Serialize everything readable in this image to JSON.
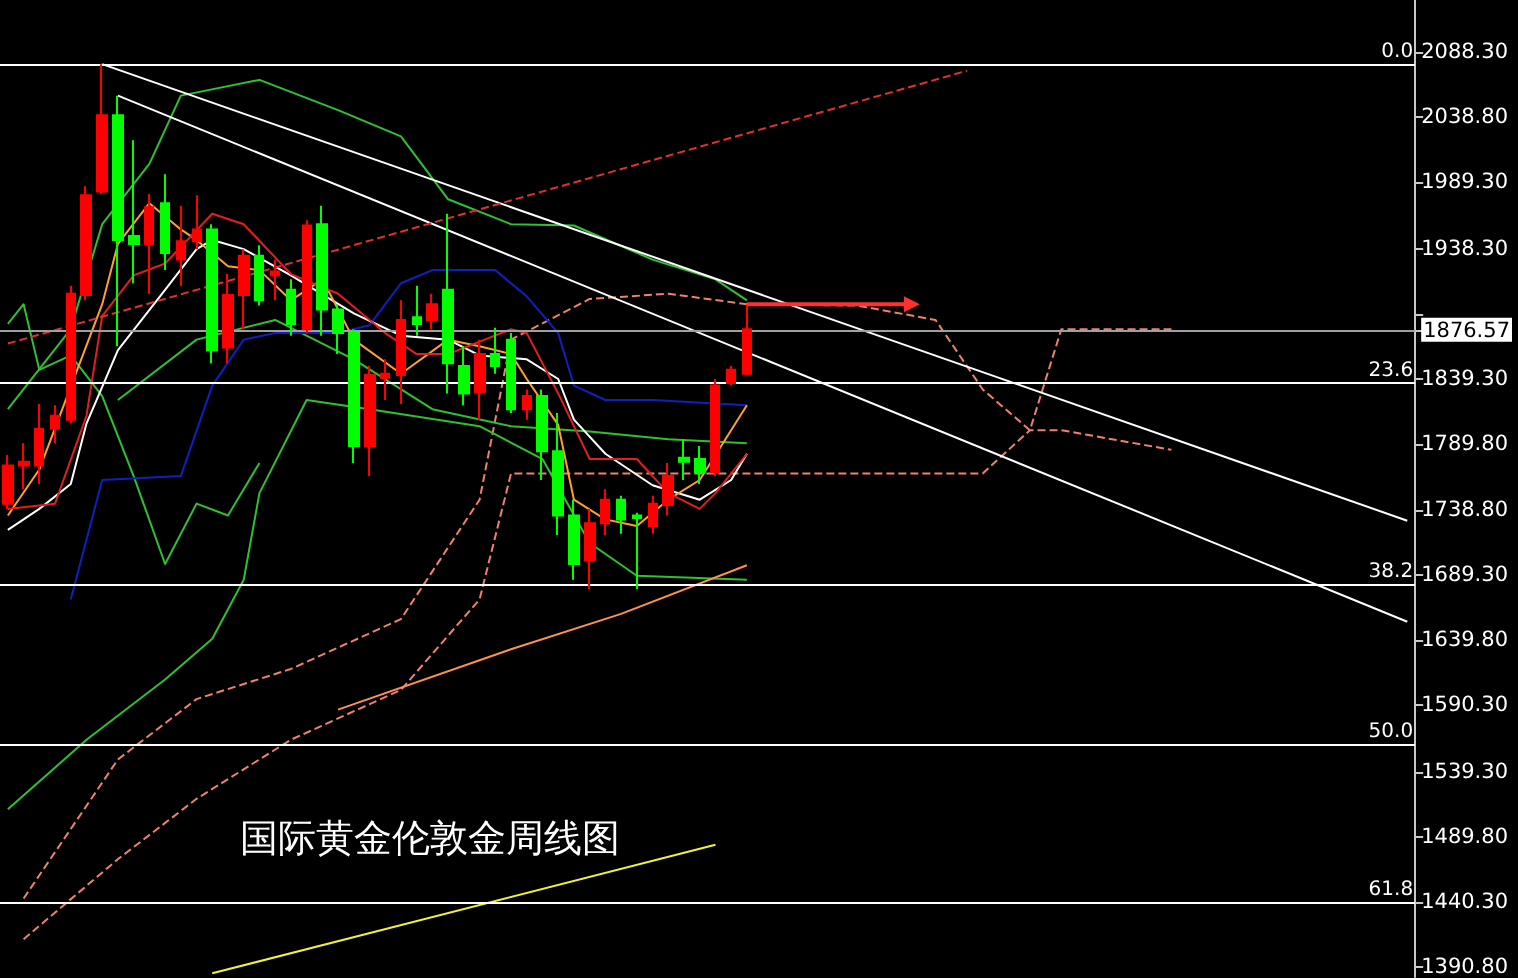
{
  "chart_data": {
    "type": "candlestick",
    "title": "国际黄金伦敦金周线图",
    "categories": [
      null,
      null,
      null,
      null,
      null,
      null,
      null,
      null,
      null,
      null,
      null,
      null,
      null,
      null,
      null,
      null,
      null,
      null,
      null,
      null,
      null,
      null,
      null,
      null,
      null,
      null,
      null,
      null,
      null,
      null,
      null,
      null,
      null,
      null,
      null,
      null,
      null,
      null,
      null,
      null,
      null,
      null,
      null,
      null,
      null,
      null,
      null,
      null,
      null,
      null,
      null,
      null,
      null,
      null,
      null,
      null,
      null,
      null,
      null,
      null,
      null,
      null,
      null,
      null,
      null,
      null,
      null,
      null,
      null,
      null,
      null,
      null,
      null,
      null,
      null,
      null,
      null,
      null,
      null,
      null,
      null,
      null,
      null,
      null,
      null,
      null,
      null,
      null,
      null,
      null
    ],
    "ylim": [
      1383.2,
      2127.9
    ],
    "yticks": [
      {
        "value": 2088.3,
        "label": "2088.30"
      },
      {
        "value": 2038.8,
        "label": "2038.80"
      },
      {
        "value": 1989.3,
        "label": "1989.30"
      },
      {
        "value": 1938.3,
        "label": "1938.30"
      },
      {
        "value": 1888.8,
        "label": null
      },
      {
        "value": 1876.57,
        "label": "1876.57"
      },
      {
        "value": 1839.3,
        "label": "1839.30"
      },
      {
        "value": 1789.8,
        "label": "1789.80"
      },
      {
        "value": 1738.8,
        "label": "1738.80"
      },
      {
        "value": 1689.3,
        "label": "1689.30"
      },
      {
        "value": 1639.8,
        "label": "1639.80"
      },
      {
        "value": 1590.3,
        "label": "1590.30"
      },
      {
        "value": 1539.3,
        "label": "1539.30"
      },
      {
        "value": 1489.8,
        "label": "1489.80"
      },
      {
        "value": 1440.3,
        "label": "1440.30"
      },
      {
        "value": 1390.8,
        "label": "1390.80"
      }
    ],
    "tick_labels": "y",
    "grid": false,
    "annotations": [
      {
        "text": "0.0",
        "y": 2079
      },
      {
        "text": "23.6",
        "y": 1836
      },
      {
        "text": "38.2",
        "y": 1683
      },
      {
        "text": "50.0",
        "y": 1561
      },
      {
        "text": "61.8",
        "y": 1440
      }
    ],
    "ref_lines": [
      {
        "axis": "y",
        "value": 2079,
        "color": "#ffffff"
      },
      {
        "axis": "y",
        "value": 1836,
        "color": "#ffffff"
      },
      {
        "axis": "y",
        "value": 1683,
        "color": "#ffffff"
      },
      {
        "axis": "y",
        "value": 1561,
        "color": "#ffffff"
      },
      {
        "axis": "y",
        "value": 1440,
        "color": "#ffffff"
      },
      {
        "axis": "y",
        "value": 1876.57,
        "color": "#a0a0a0"
      }
    ],
    "series": [
      {
        "type": "line",
        "color": "#f08070",
        "line_style": "dashed",
        "values": [
          null,
          1443,
          null,
          null,
          null,
          null,
          null,
          1549,
          null,
          null,
          null,
          null,
          1595,
          null,
          null,
          null,
          null,
          null,
          1618,
          null,
          null,
          null,
          null,
          null,
          null,
          1656,
          null,
          null,
          null,
          null,
          1747,
          null,
          1869,
          null,
          null,
          null,
          null,
          1900,
          null,
          null,
          null,
          null,
          1904,
          null,
          null,
          null,
          null,
          1896,
          null,
          null,
          null,
          null,
          null,
          null,
          1895,
          null,
          null,
          null,
          null,
          1884,
          null,
          null,
          1831,
          null,
          null,
          1800,
          null,
          1877,
          null,
          null,
          null,
          null,
          null,
          null,
          1877,
          null,
          null,
          null,
          null,
          null,
          null,
          null,
          null,
          null,
          null,
          null,
          null,
          null,
          null,
          null
        ]
      },
      {
        "type": "line",
        "color": "#f08070",
        "line_style": "dashed",
        "values": [
          null,
          1412,
          null,
          null,
          null,
          null,
          null,
          1473,
          null,
          null,
          null,
          null,
          1519,
          null,
          null,
          null,
          null,
          null,
          1564,
          null,
          null,
          null,
          null,
          null,
          null,
          1602,
          null,
          null,
          null,
          null,
          1671,
          null,
          1767,
          null,
          null,
          null,
          null,
          1767,
          null,
          null,
          null,
          null,
          1767,
          null,
          null,
          null,
          null,
          1767,
          null,
          null,
          null,
          null,
          null,
          null,
          1767,
          null,
          null,
          null,
          null,
          1767,
          null,
          null,
          1767,
          null,
          null,
          1800,
          null,
          1800,
          null,
          null,
          null,
          null,
          null,
          null,
          1785,
          null,
          null,
          null,
          null,
          null,
          null,
          null,
          null,
          null,
          null,
          null,
          null,
          null,
          null,
          null
        ]
      },
      {
        "type": "line",
        "color": "#30c030",
        "values": [
          1816,
          null,
          null,
          null,
          1877,
          null,
          1957,
          null,
          null,
          2003,
          null,
          2055,
          null,
          null,
          null,
          null,
          2067,
          null,
          null,
          null,
          null,
          2044,
          null,
          null,
          null,
          2024,
          null,
          null,
          1976,
          null,
          null,
          null,
          1957,
          null,
          null,
          null,
          1956,
          null,
          null,
          null,
          null,
          1930,
          null,
          null,
          null,
          1915,
          null,
          1899,
          null,
          null,
          null,
          null,
          null,
          null,
          null,
          null,
          null,
          null,
          null,
          null,
          null,
          null,
          null,
          null,
          null,
          null,
          null,
          null,
          null,
          null,
          null,
          null,
          null,
          null,
          null,
          null,
          null,
          null,
          null,
          null,
          null,
          null,
          null,
          null,
          null,
          null,
          null,
          null,
          null,
          null
        ]
      },
      {
        "type": "line",
        "color": "#30c030",
        "values": [
          null,
          null,
          null,
          null,
          null,
          null,
          null,
          1823,
          null,
          null,
          null,
          null,
          1869,
          null,
          null,
          null,
          null,
          1884,
          null,
          null,
          null,
          null,
          1854,
          null,
          null,
          null,
          null,
          1816,
          null,
          null,
          null,
          null,
          1803,
          null,
          null,
          null,
          null,
          1799,
          null,
          null,
          null,
          null,
          1793,
          null,
          null,
          null,
          null,
          1790,
          null,
          null,
          null,
          null,
          null,
          null,
          null,
          null,
          null,
          null,
          null,
          null,
          null,
          null,
          null,
          null,
          null,
          null,
          null,
          null,
          null,
          null,
          null,
          null,
          null,
          null,
          null,
          null,
          null,
          null,
          null,
          null,
          null,
          null,
          null,
          null,
          null,
          null,
          null,
          null,
          null,
          null
        ]
      },
      {
        "type": "line",
        "color": "#30c030",
        "values": [
          1511,
          null,
          null,
          null,
          null,
          1564,
          null,
          null,
          null,
          null,
          1610,
          null,
          null,
          1641,
          null,
          1686,
          1752,
          null,
          null,
          1823,
          null,
          null,
          null,
          1816,
          null,
          null,
          null,
          null,
          null,
          null,
          1803,
          null,
          null,
          null,
          1778,
          null,
          null,
          1714,
          null,
          null,
          1689,
          null,
          null,
          null,
          null,
          null,
          null,
          1686,
          null,
          null,
          null,
          null,
          null,
          null,
          null,
          null,
          null,
          null,
          null,
          null,
          null,
          null,
          null,
          null,
          null,
          null,
          null,
          null,
          null,
          null,
          null,
          null,
          null,
          null,
          null,
          null,
          null,
          null,
          null,
          null,
          null,
          null,
          null,
          null,
          null,
          null,
          null,
          null,
          null,
          null
        ]
      },
      {
        "type": "line",
        "color": "#30c030",
        "values": [
          1881,
          1896,
          1846,
          null,
          1857,
          null,
          1826,
          null,
          1765,
          null,
          1698,
          null,
          1744,
          null,
          1735,
          null,
          1775,
          null,
          null,
          null,
          null,
          null,
          null,
          null,
          null,
          null,
          null,
          null,
          null,
          null,
          null,
          null,
          null,
          null,
          null,
          null,
          null,
          null,
          null,
          null,
          null,
          null,
          null,
          null,
          null,
          null,
          null,
          null,
          null,
          null,
          null,
          null,
          null,
          null,
          null,
          null,
          null,
          null,
          null,
          null,
          null,
          null,
          null,
          null,
          null,
          null,
          null,
          null,
          null,
          null,
          null,
          null,
          null,
          null,
          null,
          null,
          null,
          null,
          null,
          null,
          null,
          null,
          null,
          null,
          null,
          null,
          null,
          null,
          null,
          null
        ]
      },
      {
        "type": "line",
        "color": "#1020c0",
        "values": [
          null,
          null,
          null,
          null,
          1671,
          null,
          1762,
          null,
          null,
          null,
          null,
          1765,
          null,
          1834,
          null,
          1869,
          null,
          1874,
          null,
          null,
          null,
          1874,
          null,
          1880,
          null,
          1912,
          null,
          1922,
          null,
          null,
          null,
          1922,
          null,
          1902,
          null,
          1874,
          1834,
          null,
          1823,
          null,
          null,
          1823,
          null,
          null,
          null,
          null,
          null,
          1819,
          null,
          null,
          null,
          null,
          null,
          null,
          null,
          null,
          null,
          null,
          null,
          null,
          null,
          null,
          null,
          null,
          null,
          null,
          null,
          null,
          null,
          null,
          null,
          null,
          null,
          null,
          null,
          null,
          null,
          null,
          null,
          null,
          null,
          null,
          null,
          null,
          null,
          null,
          null,
          null,
          null,
          null
        ]
      },
      {
        "type": "line",
        "color": "#ffffff",
        "values": [
          1724,
          null,
          1740,
          null,
          1759,
          1805,
          null,
          1861,
          null,
          null,
          1907,
          null,
          1938,
          1945,
          null,
          1938,
          null,
          null,
          1918,
          null,
          null,
          null,
          1889,
          null,
          null,
          1872,
          null,
          null,
          1869,
          null,
          1857,
          null,
          null,
          1854,
          null,
          1839,
          1808,
          null,
          1782,
          null,
          null,
          1758,
          null,
          null,
          1747,
          null,
          1762,
          1782,
          null,
          null,
          null,
          null,
          null,
          null,
          null,
          null,
          null,
          null,
          null,
          null,
          null,
          null,
          null,
          null,
          null,
          null,
          null,
          null,
          null,
          null,
          null,
          null,
          null,
          null,
          null,
          null,
          null,
          null,
          null,
          null,
          null,
          null,
          null,
          null,
          null,
          null,
          null,
          null,
          null,
          null
        ]
      },
      {
        "type": "line",
        "color": "#ffa030",
        "values": [
          1735,
          null,
          1770,
          null,
          null,
          null,
          1896,
          1942,
          null,
          1973,
          null,
          1953,
          1945,
          null,
          1925,
          null,
          1922,
          null,
          1899,
          null,
          1915,
          null,
          1869,
          null,
          null,
          1843,
          null,
          null,
          1869,
          null,
          1864,
          null,
          1858,
          1839,
          null,
          1804,
          1747,
          null,
          1732,
          null,
          1727,
          null,
          1747,
          null,
          1762,
          null,
          null,
          1819,
          null,
          null,
          null,
          null,
          null,
          null,
          null,
          null,
          null,
          null,
          null,
          null,
          null,
          null,
          null,
          null,
          null,
          null,
          null,
          null,
          null,
          null,
          null,
          null,
          null,
          null,
          null,
          null,
          null,
          null,
          null,
          null,
          null,
          null,
          null,
          null,
          null,
          null,
          null,
          null,
          null,
          null
        ]
      },
      {
        "type": "line",
        "color": "#e02020",
        "values": [
          1740,
          null,
          null,
          1744,
          null,
          1811,
          1887,
          null,
          1918,
          null,
          1927,
          null,
          null,
          1965,
          null,
          1957,
          null,
          null,
          1919,
          null,
          null,
          1904,
          null,
          null,
          1874,
          null,
          1858,
          null,
          1858,
          null,
          null,
          null,
          1877,
          1874,
          null,
          1828,
          null,
          1778,
          null,
          null,
          1778,
          null,
          1752,
          null,
          1740,
          1752,
          null,
          1782,
          null,
          null,
          null,
          null,
          null,
          null,
          null,
          null,
          null,
          null,
          null,
          null,
          null,
          null,
          null,
          null,
          null,
          null,
          null,
          null,
          null,
          null,
          null,
          null,
          null,
          null,
          null,
          null,
          null,
          null,
          null,
          null,
          null,
          null,
          null,
          null,
          null,
          null,
          null,
          null,
          null,
          null
        ]
      },
      {
        "type": "line",
        "color": "#ff9050",
        "values": [
          null,
          null,
          null,
          null,
          null,
          null,
          null,
          null,
          null,
          null,
          null,
          null,
          null,
          null,
          null,
          null,
          null,
          null,
          null,
          null,
          null,
          1587,
          null,
          null,
          null,
          null,
          null,
          null,
          null,
          null,
          null,
          null,
          1633,
          null,
          null,
          null,
          null,
          null,
          null,
          1660,
          null,
          null,
          null,
          null,
          null,
          null,
          null,
          1697,
          null,
          null,
          null,
          null,
          null,
          null,
          null,
          null,
          null,
          null,
          null,
          null,
          null,
          null,
          null,
          null,
          null,
          null,
          null,
          null,
          null,
          null,
          null,
          null,
          null,
          null,
          null,
          null,
          null,
          null,
          null,
          null,
          null,
          null,
          null,
          null,
          null,
          null,
          null,
          null,
          null,
          null
        ]
      },
      {
        "type": "line",
        "color": "#f0f040",
        "values": [
          null,
          null,
          null,
          null,
          null,
          null,
          null,
          null,
          null,
          null,
          null,
          null,
          null,
          1386,
          null,
          null,
          null,
          null,
          null,
          null,
          null,
          null,
          null,
          null,
          null,
          null,
          null,
          null,
          null,
          null,
          null,
          null,
          null,
          null,
          null,
          null,
          null,
          null,
          null,
          null,
          null,
          null,
          null,
          null,
          null,
          1484,
          null,
          null,
          null,
          null,
          null,
          null,
          null,
          null,
          null,
          null,
          null,
          null,
          null,
          null,
          null,
          null,
          null,
          null,
          null,
          null,
          null,
          null,
          null,
          null,
          null,
          null,
          null,
          null,
          null,
          null,
          null,
          null,
          null,
          null,
          null,
          null,
          null,
          null,
          null,
          null,
          null,
          null,
          null,
          null
        ]
      },
      {
        "type": "line",
        "color": "#ffffff",
        "values": [
          null,
          null,
          null,
          null,
          null,
          null,
          2079,
          null,
          null,
          null,
          null,
          null,
          null,
          null,
          null,
          null,
          null,
          null,
          null,
          null,
          null,
          null,
          null,
          null,
          null,
          null,
          null,
          null,
          null,
          null,
          null,
          null,
          null,
          null,
          null,
          null,
          null,
          null,
          null,
          null,
          null,
          null,
          null,
          null,
          null,
          null,
          null,
          null,
          null,
          null,
          null,
          null,
          null,
          null,
          null,
          null,
          null,
          null,
          null,
          null,
          null,
          null,
          null,
          null,
          null,
          null,
          null,
          null,
          null,
          null,
          null,
          null,
          null,
          null,
          null,
          null,
          null,
          null,
          null,
          null,
          null,
          null,
          null,
          null,
          null,
          null,
          null,
          null,
          null,
          1731
        ]
      },
      {
        "type": "line",
        "color": "#ffffff",
        "values": [
          null,
          null,
          null,
          null,
          null,
          null,
          null,
          2055,
          null,
          null,
          null,
          null,
          null,
          null,
          null,
          null,
          null,
          null,
          null,
          null,
          null,
          null,
          null,
          null,
          null,
          null,
          null,
          null,
          null,
          null,
          null,
          null,
          null,
          null,
          null,
          null,
          null,
          null,
          null,
          null,
          null,
          null,
          null,
          null,
          null,
          null,
          null,
          null,
          null,
          null,
          null,
          null,
          null,
          null,
          null,
          null,
          null,
          null,
          null,
          null,
          null,
          null,
          null,
          null,
          null,
          null,
          null,
          null,
          null,
          null,
          null,
          null,
          null,
          null,
          null,
          null,
          null,
          null,
          null,
          null,
          null,
          null,
          null,
          null,
          null,
          null,
          null,
          null,
          null,
          1654
        ]
      },
      {
        "type": "line",
        "color": "#e03030",
        "line_style": "dashed",
        "values": [
          1866,
          null,
          null,
          null,
          null,
          null,
          null,
          null,
          null,
          null,
          null,
          null,
          null,
          null,
          null,
          null,
          null,
          null,
          null,
          null,
          null,
          null,
          null,
          null,
          null,
          null,
          null,
          null,
          null,
          null,
          null,
          null,
          null,
          null,
          null,
          null,
          null,
          null,
          null,
          null,
          null,
          null,
          null,
          null,
          null,
          null,
          null,
          null,
          null,
          null,
          null,
          null,
          null,
          null,
          null,
          null,
          null,
          null,
          null,
          null,
          null,
          2074,
          null,
          null,
          null,
          null,
          null,
          null,
          null,
          null,
          null,
          null,
          null,
          null,
          null,
          null,
          null,
          null,
          null,
          null,
          null,
          null,
          null,
          null,
          null,
          null,
          null,
          null,
          null,
          null
        ]
      },
      {
        "type": "candlestick",
        "ohlc": [
          [
            1744,
            1781,
            1740,
            1773
          ],
          [
            1773,
            1790,
            1755,
            1776
          ],
          [
            1773,
            1820,
            1759,
            1801
          ],
          [
            1801,
            1819,
            1790,
            1811
          ],
          [
            1808,
            1910,
            1805,
            1904
          ],
          [
            1903,
            1986,
            1899,
            1979
          ],
          [
            1982,
            2079,
            1980,
            2040
          ],
          [
            2040,
            2055,
            1864,
            1945
          ],
          [
            1948,
            2021,
            1912,
            1942
          ],
          [
            1942,
            1980,
            1904,
            1970
          ],
          [
            1973,
            1995,
            1922,
            1935
          ],
          [
            1930,
            1971,
            1910,
            1944
          ],
          [
            1944,
            1979,
            1938,
            1953
          ],
          [
            1953,
            1957,
            1851,
            1861
          ],
          [
            1863,
            1919,
            1851,
            1903
          ],
          [
            1903,
            1938,
            1877,
            1933
          ],
          [
            1933,
            1941,
            1895,
            1899
          ],
          [
            1918,
            1930,
            1899,
            1921
          ],
          [
            1907,
            1915,
            1872,
            1881
          ],
          [
            1877,
            1960,
            1874,
            1956
          ],
          [
            1957,
            1971,
            1872,
            1892
          ],
          [
            1892,
            1896,
            1858,
            1874
          ],
          [
            1874,
            1877,
            1775,
            1788
          ],
          [
            1788,
            1849,
            1765,
            1842
          ],
          [
            1840,
            1854,
            1823,
            1843
          ],
          [
            1842,
            1899,
            1820,
            1884
          ],
          [
            1886,
            1910,
            1872,
            1881
          ],
          [
            1884,
            1904,
            1877,
            1896
          ],
          [
            1907,
            1965,
            1828,
            1851
          ],
          [
            1849,
            1864,
            1819,
            1828
          ],
          [
            1829,
            1869,
            1808,
            1858
          ],
          [
            1858,
            1878,
            1843,
            1849
          ],
          [
            1869,
            1874,
            1813,
            1816
          ],
          [
            1816,
            1831,
            1808,
            1826
          ],
          [
            1826,
            1831,
            1762,
            1784
          ],
          [
            1784,
            1813,
            1720,
            1735
          ],
          [
            1735,
            1747,
            1686,
            1698
          ],
          [
            1701,
            1740,
            1679,
            1729
          ],
          [
            1729,
            1755,
            1720,
            1747
          ],
          [
            1747,
            1750,
            1721,
            1732
          ],
          [
            1735,
            1737,
            1679,
            1733
          ],
          [
            1727,
            1750,
            1721,
            1744
          ],
          [
            1743,
            1775,
            1735,
            1765
          ],
          [
            1779,
            1793,
            1762,
            1776
          ],
          [
            1778,
            1788,
            1759,
            1768
          ],
          [
            1768,
            1839,
            1765,
            1834
          ],
          [
            1836,
            1849,
            1834,
            1846
          ],
          [
            1843,
            1896,
            1842,
            1877
          ],
          null,
          null,
          null,
          null,
          null,
          null,
          null,
          null,
          null,
          null,
          null,
          null,
          null,
          null,
          null,
          null,
          null,
          null,
          null,
          null,
          null,
          null,
          null,
          null,
          null,
          null,
          null,
          null,
          null,
          null,
          null,
          null,
          null,
          null,
          null,
          null,
          null,
          null,
          null,
          null,
          null,
          null
        ],
        "colors": [
          "#ff0000",
          "#ff0000",
          "#ff0000",
          "#ff0000",
          "#ff0000",
          "#ff0000",
          "#ff0000",
          "#00ff00",
          "#00ff00",
          "#ff0000",
          "#00ff00",
          "#ff0000",
          "#ff0000",
          "#00ff00",
          "#ff0000",
          "#ff0000",
          "#00ff00",
          "#ff0000",
          "#00ff00",
          "#ff0000",
          "#00ff00",
          "#00ff00",
          "#00ff00",
          "#ff0000",
          "#ff0000",
          "#ff0000",
          "#00ff00",
          "#ff0000",
          "#00ff00",
          "#00ff00",
          "#ff0000",
          "#00ff00",
          "#00ff00",
          "#ff0000",
          "#00ff00",
          "#00ff00",
          "#00ff00",
          "#ff0000",
          "#ff0000",
          "#00ff00",
          "#00ff00",
          "#ff0000",
          "#ff0000",
          "#00ff00",
          "#00ff00",
          "#ff0000",
          "#ff0000",
          "#ff0000",
          null,
          null,
          null,
          null,
          null,
          null,
          null,
          null,
          null,
          null,
          null,
          null,
          null,
          null,
          null,
          null,
          null,
          null,
          null,
          null,
          null,
          null,
          null,
          null,
          null,
          null,
          null,
          null,
          null,
          null,
          null,
          null,
          null,
          null,
          null,
          null,
          null,
          null,
          null,
          null,
          null,
          null
        ]
      }
    ]
  }
}
